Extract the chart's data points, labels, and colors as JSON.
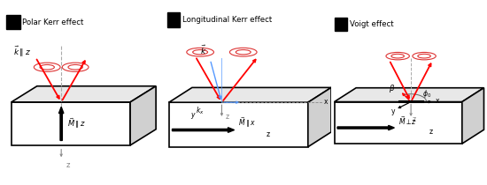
{
  "title_polar": "Polar Kerr effect",
  "title_long": "Longitudinal Kerr effect",
  "title_voigt": "Voigt effect",
  "bg_color": "#ffffff",
  "red_color": "#ff0000",
  "blue_color": "#5599ff",
  "gray_color": "#999999",
  "lens_color": "#dd3333"
}
